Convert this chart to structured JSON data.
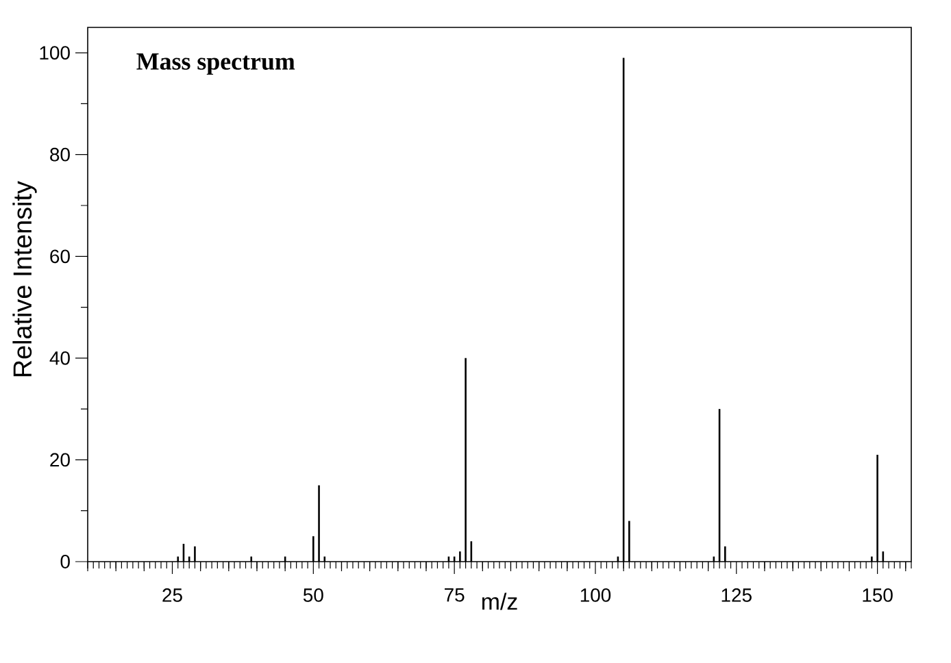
{
  "chart_data": {
    "type": "bar",
    "title": "Mass spectrum",
    "xlabel": "m/z",
    "ylabel": "Relative Intensity",
    "x": [
      26,
      27,
      28,
      29,
      39,
      45,
      50,
      51,
      52,
      74,
      75,
      76,
      77,
      78,
      104,
      105,
      106,
      121,
      122,
      123,
      149,
      150,
      151
    ],
    "values": [
      1,
      3.5,
      1,
      3,
      1,
      1,
      5,
      15,
      1,
      1,
      1,
      2,
      40,
      4,
      1,
      99,
      8,
      1,
      30,
      3,
      1,
      21,
      2
    ],
    "color": "#000000",
    "xlim": [
      10,
      156
    ],
    "ylim": [
      0,
      105
    ],
    "xticks": [
      25,
      50,
      75,
      100,
      125,
      150
    ],
    "yticks": [
      0,
      20,
      40,
      60,
      80,
      100
    ]
  }
}
